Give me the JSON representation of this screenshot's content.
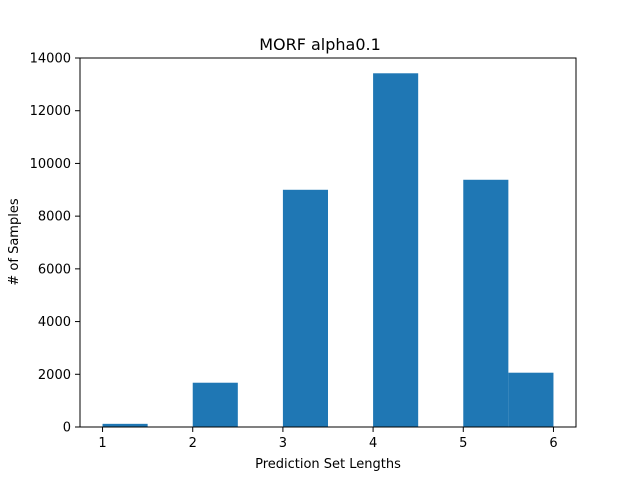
{
  "chart_data": {
    "type": "bar",
    "title": "MORF alpha0.1",
    "xlabel": "Prediction Set Lengths",
    "ylabel": "# of Samples",
    "xlim": [
      0.75,
      6.25
    ],
    "ylim": [
      0,
      14000
    ],
    "xticks": [
      1,
      2,
      3,
      4,
      5,
      6
    ],
    "yticks": [
      0,
      2000,
      4000,
      6000,
      8000,
      10000,
      12000,
      14000
    ],
    "bar_color": "#1f77b4",
    "bins": [
      {
        "start": 1.0,
        "end": 1.5,
        "value": 120
      },
      {
        "start": 1.5,
        "end": 2.0,
        "value": 0
      },
      {
        "start": 2.0,
        "end": 2.5,
        "value": 1680
      },
      {
        "start": 2.5,
        "end": 3.0,
        "value": 0
      },
      {
        "start": 3.0,
        "end": 3.5,
        "value": 9000
      },
      {
        "start": 3.5,
        "end": 4.0,
        "value": 0
      },
      {
        "start": 4.0,
        "end": 4.5,
        "value": 13420
      },
      {
        "start": 4.5,
        "end": 5.0,
        "value": 0
      },
      {
        "start": 5.0,
        "end": 5.5,
        "value": 9380
      },
      {
        "start": 5.5,
        "end": 6.0,
        "value": 2060
      }
    ],
    "grid": false,
    "legend": "none"
  }
}
